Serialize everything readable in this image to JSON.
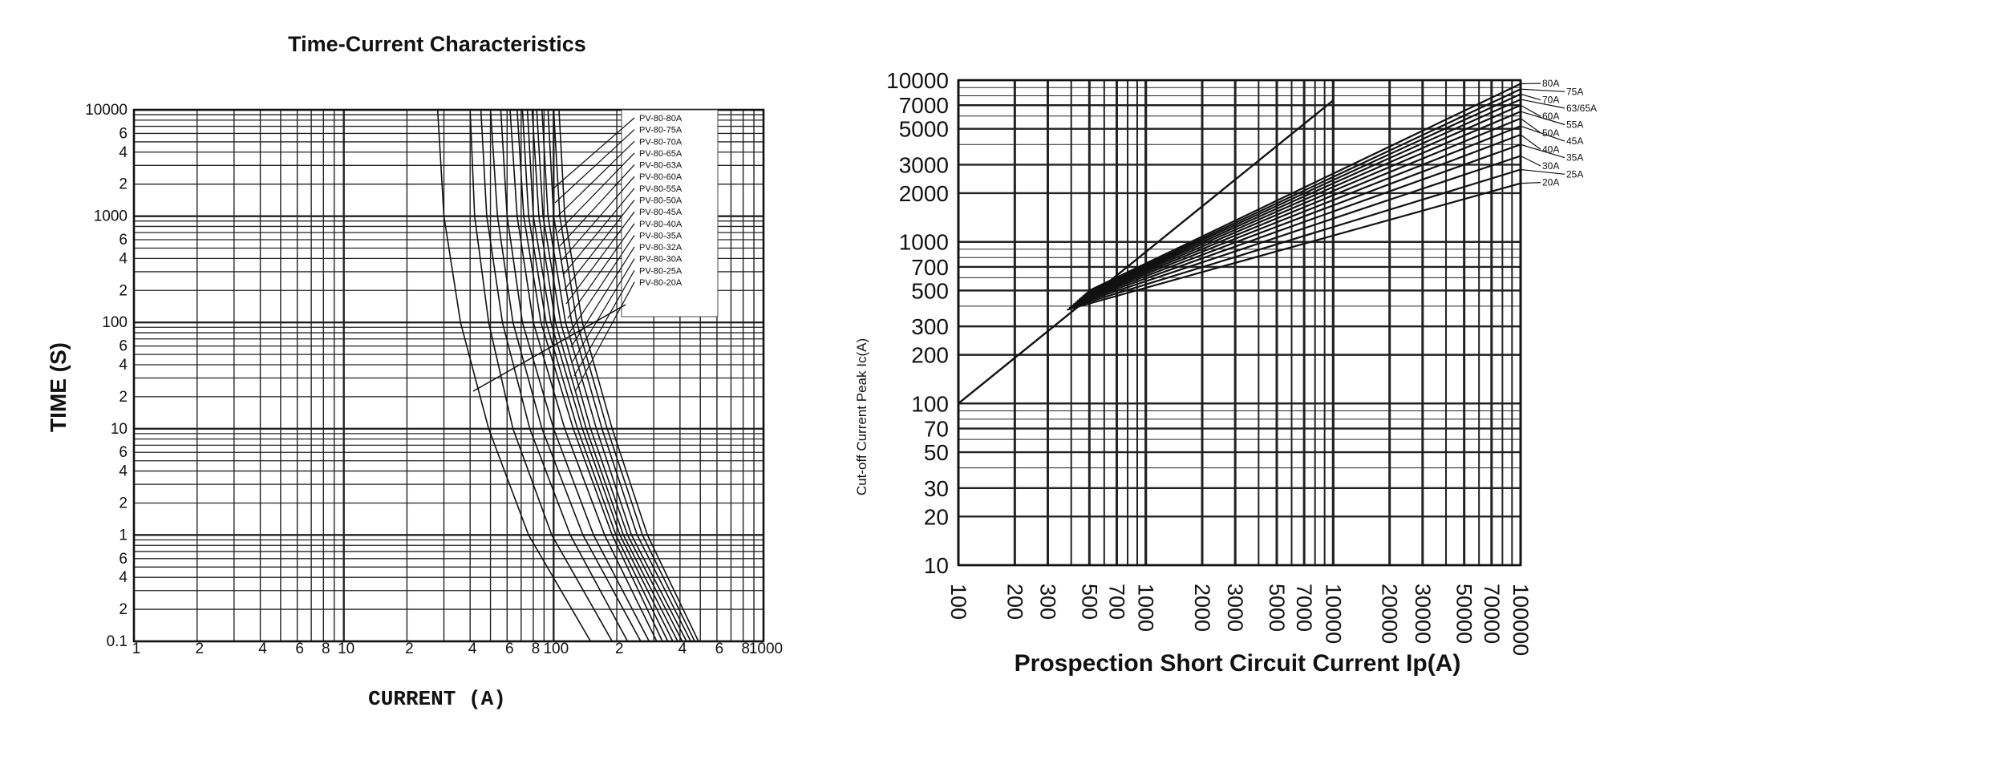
{
  "chart_data": [
    {
      "type": "line",
      "title": "Time-Current Characteristics",
      "xlabel": "CURRENT (A)",
      "ylabel": "TIME (S)",
      "xscale": "log",
      "yscale": "log",
      "xlim": [
        1,
        1000
      ],
      "ylim": [
        0.1,
        10000
      ],
      "grid": true,
      "legend_position": "top-right",
      "x_tick_labels": [
        {
          "v": 1,
          "t": "1"
        },
        {
          "v": 2,
          "t": "2"
        },
        {
          "v": 4,
          "t": "4"
        },
        {
          "v": 6,
          "t": "6"
        },
        {
          "v": 8,
          "t": "8"
        },
        {
          "v": 10,
          "t": "10"
        },
        {
          "v": 20,
          "t": "2"
        },
        {
          "v": 40,
          "t": "4"
        },
        {
          "v": 60,
          "t": "6"
        },
        {
          "v": 80,
          "t": "8"
        },
        {
          "v": 100,
          "t": "100"
        },
        {
          "v": 200,
          "t": "2"
        },
        {
          "v": 400,
          "t": "4"
        },
        {
          "v": 600,
          "t": "6"
        },
        {
          "v": 800,
          "t": "8"
        },
        {
          "v": 1000,
          "t": "1000"
        }
      ],
      "y_tick_labels": [
        {
          "v": 10000,
          "t": "10000"
        },
        {
          "v": 6000,
          "t": "6"
        },
        {
          "v": 4000,
          "t": "4"
        },
        {
          "v": 2000,
          "t": "2"
        },
        {
          "v": 1000,
          "t": "1000"
        },
        {
          "v": 600,
          "t": "6"
        },
        {
          "v": 400,
          "t": "4"
        },
        {
          "v": 200,
          "t": "2"
        },
        {
          "v": 100,
          "t": "100"
        },
        {
          "v": 60,
          "t": "6"
        },
        {
          "v": 40,
          "t": "4"
        },
        {
          "v": 20,
          "t": "2"
        },
        {
          "v": 10,
          "t": "10"
        },
        {
          "v": 6,
          "t": "6"
        },
        {
          "v": 4,
          "t": "4"
        },
        {
          "v": 2,
          "t": "2"
        },
        {
          "v": 1,
          "t": "1"
        },
        {
          "v": 0.6,
          "t": "6"
        },
        {
          "v": 0.4,
          "t": "4"
        },
        {
          "v": 0.2,
          "t": "2"
        },
        {
          "v": 0.1,
          "t": "0.1"
        }
      ],
      "series": [
        {
          "name": "PV-80-80A",
          "points": [
            [
              106,
              10000
            ],
            [
              113,
              1000
            ],
            [
              137,
              100
            ],
            [
              190,
              10
            ],
            [
              280,
              1
            ],
            [
              490,
              0.1
            ]
          ]
        },
        {
          "name": "PV-80-75A",
          "points": [
            [
              100,
              10000
            ],
            [
              107,
              1000
            ],
            [
              129,
              100
            ],
            [
              180,
              10
            ],
            [
              265,
              1
            ],
            [
              470,
              0.1
            ]
          ]
        },
        {
          "name": "PV-80-70A",
          "points": [
            [
              94,
              10000
            ],
            [
              100,
              1000
            ],
            [
              122,
              100
            ],
            [
              170,
              10
            ],
            [
              250,
              1
            ],
            [
              450,
              0.1
            ]
          ]
        },
        {
          "name": "PV-80-65A",
          "points": [
            [
              88,
              10000
            ],
            [
              94,
              1000
            ],
            [
              114,
              100
            ],
            [
              160,
              10
            ],
            [
              235,
              1
            ],
            [
              430,
              0.1
            ]
          ]
        },
        {
          "name": "PV-80-63A",
          "points": [
            [
              83,
              10000
            ],
            [
              89,
              1000
            ],
            [
              108,
              100
            ],
            [
              150,
              10
            ],
            [
              225,
              1
            ],
            [
              410,
              0.1
            ]
          ]
        },
        {
          "name": "PV-80-60A",
          "points": [
            [
              79,
              10000
            ],
            [
              85,
              1000
            ],
            [
              102,
              100
            ],
            [
              143,
              10
            ],
            [
              215,
              1
            ],
            [
              390,
              0.1
            ]
          ]
        },
        {
          "name": "PV-80-55A",
          "points": [
            [
              75,
              10000
            ],
            [
              80,
              1000
            ],
            [
              97,
              100
            ],
            [
              137,
              10
            ],
            [
              207,
              1
            ],
            [
              370,
              0.1
            ]
          ]
        },
        {
          "name": "PV-80-50A",
          "points": [
            [
              71,
              10000
            ],
            [
              76,
              1000
            ],
            [
              92,
              100
            ],
            [
              130,
              10
            ],
            [
              198,
              1
            ],
            [
              350,
              0.1
            ]
          ]
        },
        {
          "name": "PV-80-45A",
          "points": [
            [
              67,
              10000
            ],
            [
              72,
              1000
            ],
            [
              87,
              100
            ],
            [
              124,
              10
            ],
            [
              190,
              1
            ],
            [
              330,
              0.1
            ]
          ]
        },
        {
          "name": "PV-80-40A",
          "points": [
            [
              62,
              10000
            ],
            [
              67,
              1000
            ],
            [
              80,
              100
            ],
            [
              113,
              10
            ],
            [
              175,
              1
            ],
            [
              310,
              0.1
            ]
          ]
        },
        {
          "name": "PV-80-35A",
          "points": [
            [
              56,
              10000
            ],
            [
              60,
              1000
            ],
            [
              71,
              100
            ],
            [
              100,
              10
            ],
            [
              155,
              1
            ],
            [
              285,
              0.1
            ]
          ]
        },
        {
          "name": "PV-80-32A",
          "points": [
            [
              50,
              10000
            ],
            [
              54,
              1000
            ],
            [
              64,
              100
            ],
            [
              88,
              10
            ],
            [
              138,
              1
            ],
            [
              260,
              0.1
            ]
          ]
        },
        {
          "name": "PV-80-30A",
          "points": [
            [
              45,
              10000
            ],
            [
              48,
              1000
            ],
            [
              57,
              100
            ],
            [
              77,
              10
            ],
            [
              120,
              1
            ],
            [
              225,
              0.1
            ]
          ]
        },
        {
          "name": "PV-80-25A",
          "points": [
            [
              40,
              10000
            ],
            [
              42,
              1000
            ],
            [
              49,
              100
            ],
            [
              64,
              10
            ],
            [
              98,
              1
            ],
            [
              190,
              0.1
            ]
          ]
        },
        {
          "name": "PV-80-20A",
          "points": [
            [
              28,
              10000
            ],
            [
              30,
              1000
            ],
            [
              36,
              100
            ],
            [
              49,
              10
            ],
            [
              76,
              1
            ],
            [
              150,
              0.1
            ]
          ]
        }
      ]
    },
    {
      "type": "line",
      "title": "",
      "xlabel": "Prospection Short Circuit Current Ip(A)",
      "ylabel": "Cut-off Current Peak Ic(A)",
      "xscale": "log",
      "yscale": "log",
      "xlim": [
        100,
        100000
      ],
      "ylim": [
        10,
        10000
      ],
      "grid": true,
      "legend_position": "right",
      "x_tick_labels": [
        "100",
        "200",
        "300",
        "500",
        "700",
        "1000",
        "2000",
        "3000",
        "5000",
        "7000",
        "10000",
        "20000",
        "30000",
        "50000",
        "70000",
        "100000"
      ],
      "y_tick_labels": [
        "10000",
        "7000",
        "5000",
        "3000",
        "2000",
        "1000",
        "700",
        "500",
        "300",
        "200",
        "100",
        "70",
        "50",
        "30",
        "20",
        "10"
      ],
      "reference_line": {
        "points": [
          [
            100,
            100
          ],
          [
            10000,
            7500
          ]
        ]
      },
      "series": [
        {
          "name": "80A",
          "points": [
            [
              500,
              500
            ],
            [
              100000,
              9500
            ]
          ]
        },
        {
          "name": "75A",
          "points": [
            [
              490,
              490
            ],
            [
              100000,
              8800
            ]
          ]
        },
        {
          "name": "70A",
          "points": [
            [
              480,
              480
            ],
            [
              100000,
              8200
            ]
          ]
        },
        {
          "name": "63/65A",
          "points": [
            [
              470,
              470
            ],
            [
              100000,
              7600
            ]
          ]
        },
        {
          "name": "60A",
          "points": [
            [
              460,
              460
            ],
            [
              100000,
              7000
            ]
          ]
        },
        {
          "name": "55A",
          "points": [
            [
              450,
              450
            ],
            [
              100000,
              6400
            ]
          ]
        },
        {
          "name": "50A",
          "points": [
            [
              440,
              440
            ],
            [
              100000,
              5800
            ]
          ]
        },
        {
          "name": "45A",
          "points": [
            [
              430,
              430
            ],
            [
              100000,
              5200
            ]
          ]
        },
        {
          "name": "40A",
          "points": [
            [
              420,
              420
            ],
            [
              100000,
              4600
            ]
          ]
        },
        {
          "name": "35A",
          "points": [
            [
              410,
              410
            ],
            [
              100000,
              4000
            ]
          ]
        },
        {
          "name": "30A",
          "points": [
            [
              400,
              400
            ],
            [
              100000,
              3400
            ]
          ]
        },
        {
          "name": "25A",
          "points": [
            [
              390,
              390
            ],
            [
              100000,
              2800
            ]
          ]
        },
        {
          "name": "20A",
          "points": [
            [
              380,
              380
            ],
            [
              100000,
              2300
            ]
          ]
        }
      ]
    }
  ]
}
